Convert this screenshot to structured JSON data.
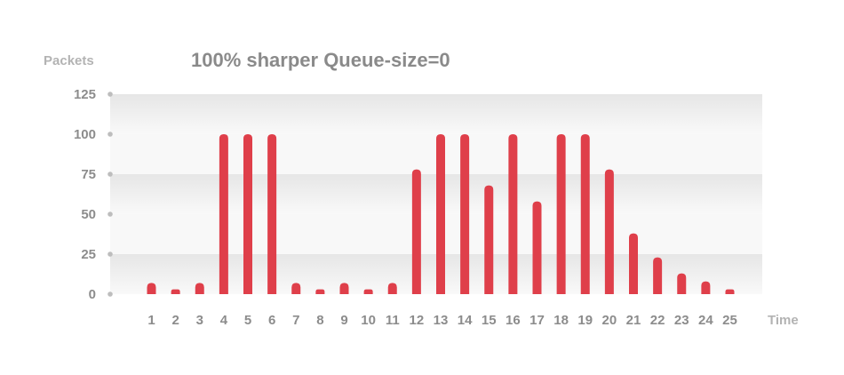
{
  "chart_data": {
    "type": "bar",
    "title": "100% sharper Queue-size=0",
    "ylabel": "Packets",
    "xlabel": "Time",
    "ylim": [
      0,
      125
    ],
    "yticks": [
      0,
      25,
      50,
      75,
      100,
      125
    ],
    "grid": "alternating horizontal bands",
    "legend": "none",
    "categories": [
      "1",
      "2",
      "3",
      "4",
      "5",
      "6",
      "7",
      "8",
      "9",
      "10",
      "11",
      "12",
      "13",
      "14",
      "15",
      "16",
      "17",
      "18",
      "19",
      "20",
      "21",
      "22",
      "23",
      "24",
      "25"
    ],
    "values": [
      7,
      3,
      7,
      100,
      100,
      100,
      7,
      3,
      7,
      3,
      7,
      78,
      100,
      100,
      68,
      100,
      58,
      100,
      100,
      78,
      38,
      23,
      13,
      8,
      3
    ],
    "colors": {
      "bar": "#df3f4a",
      "band_dark": "#e9e9e9",
      "band_light": "#f8f8f8",
      "text": "#8c8c8c",
      "axis_title": "#b3b3b3",
      "dot": "#bdbdbd"
    }
  }
}
